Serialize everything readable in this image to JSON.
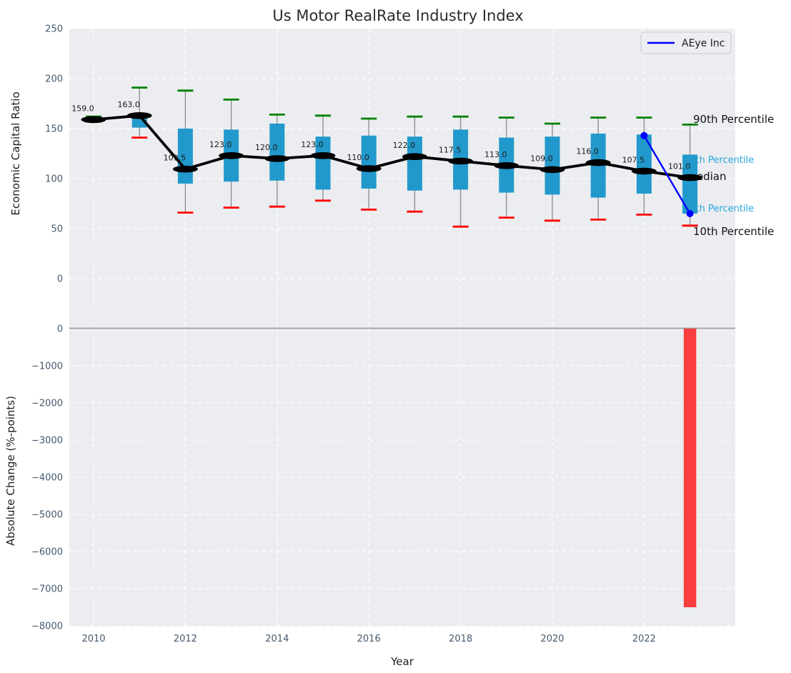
{
  "title": "Us Motor RealRate Industry Index",
  "legend": {
    "label": "AEye Inc"
  },
  "annotations": {
    "p90": {
      "text": "90th Percentile",
      "color": "#111111"
    },
    "p75": {
      "text": "75th Percentile",
      "color": "#29a7dd"
    },
    "median": {
      "text": "Median",
      "color": "#111111"
    },
    "p25": {
      "text": "25th Percentile",
      "color": "#29a7dd"
    },
    "p10": {
      "text": "10th Percentile",
      "color": "#111111"
    }
  },
  "colors": {
    "box_fill": "#2299cc",
    "whisker": "#8a8a8a",
    "cap_top": "#008000",
    "cap_bottom": "#ff0000",
    "median_line": "#000000",
    "company_line": "#0000ff",
    "panel_bg": "#ebedf0",
    "grid": "#ffffff",
    "tick_label": "#44596e",
    "annotation_cyan": "#29a7dd",
    "bar_negative": "#fa3e3e",
    "zero_line": "#9c9c9c",
    "title_text": "#2b2b2b",
    "axis_label_text": "#1f1f1f",
    "legend_bg": "#edeef4",
    "legend_border": "#c9cad1"
  },
  "chart_data": [
    {
      "type": "boxplot",
      "panel": "top",
      "title": "Us Motor RealRate Industry Index",
      "xlabel": "Year",
      "ylabel": "Economic Capital Ratio",
      "ylim": [
        -30,
        250
      ],
      "grid": true,
      "legend_position": "upper right",
      "yticks": [
        0,
        50,
        100,
        150,
        200,
        250
      ],
      "ytick_labels": [
        "0",
        "50",
        "100",
        "150",
        "200",
        "250"
      ],
      "xticks": [
        2010,
        2012,
        2014,
        2016,
        2018,
        2020,
        2022
      ],
      "xtick_labels": [
        "2010",
        "2012",
        "2014",
        "2016",
        "2018",
        "2020",
        "2022"
      ],
      "boxes": [
        {
          "year": 2010,
          "p10": 157,
          "p25": 158,
          "median": 159.0,
          "p75": 160.5,
          "p90": 162,
          "label": "159.0"
        },
        {
          "year": 2011,
          "p10": 141,
          "p25": 151,
          "median": 163.0,
          "p75": 163.5,
          "p90": 191,
          "label": "163.0"
        },
        {
          "year": 2012,
          "p10": 66,
          "p25": 95,
          "median": 109.5,
          "p75": 150,
          "p90": 188,
          "label": "109.5"
        },
        {
          "year": 2013,
          "p10": 71,
          "p25": 97,
          "median": 123.0,
          "p75": 149,
          "p90": 179,
          "label": "123.0"
        },
        {
          "year": 2014,
          "p10": 72,
          "p25": 98,
          "median": 120.0,
          "p75": 155,
          "p90": 164,
          "label": "120.0"
        },
        {
          "year": 2015,
          "p10": 78,
          "p25": 89,
          "median": 123.0,
          "p75": 142,
          "p90": 163,
          "label": "123.0"
        },
        {
          "year": 2016,
          "p10": 69,
          "p25": 90,
          "median": 110.0,
          "p75": 143,
          "p90": 160,
          "label": "110.0"
        },
        {
          "year": 2017,
          "p10": 67,
          "p25": 88,
          "median": 122.0,
          "p75": 142,
          "p90": 162,
          "label": "122.0"
        },
        {
          "year": 2018,
          "p10": 52,
          "p25": 89,
          "median": 117.5,
          "p75": 149,
          "p90": 162,
          "label": "117.5"
        },
        {
          "year": 2019,
          "p10": 61,
          "p25": 86,
          "median": 113.0,
          "p75": 141,
          "p90": 161,
          "label": "113.0"
        },
        {
          "year": 2020,
          "p10": 58,
          "p25": 84,
          "median": 109.0,
          "p75": 142,
          "p90": 155,
          "label": "109.0"
        },
        {
          "year": 2021,
          "p10": 59,
          "p25": 81,
          "median": 116.0,
          "p75": 145,
          "p90": 161,
          "label": "116.0"
        },
        {
          "year": 2022,
          "p10": 64,
          "p25": 85,
          "median": 107.5,
          "p75": 144,
          "p90": 161,
          "label": "107.5"
        },
        {
          "year": 2023,
          "p10": 53,
          "p25": 65,
          "median": 101.0,
          "p75": 124,
          "p90": 154,
          "label": "101.0"
        }
      ],
      "company_line": {
        "name": "AEye Inc",
        "points": [
          {
            "year": 2022,
            "value": 143
          },
          {
            "year": 2023,
            "value": 65
          }
        ]
      }
    },
    {
      "type": "bar",
      "panel": "bottom",
      "ylabel": "Absolute Change (%-points)",
      "ylim": [
        550,
        -8020
      ],
      "grid": true,
      "yticks": [
        0,
        -1000,
        -2000,
        -3000,
        -4000,
        -5000,
        -6000,
        -7000,
        -8000
      ],
      "ytick_labels": [
        "0",
        "−1000",
        "−2000",
        "−3000",
        "−4000",
        "−5000",
        "−6000",
        "−7000",
        "−8000"
      ],
      "bars": [
        {
          "year": 2023,
          "value": -7500
        }
      ]
    }
  ]
}
